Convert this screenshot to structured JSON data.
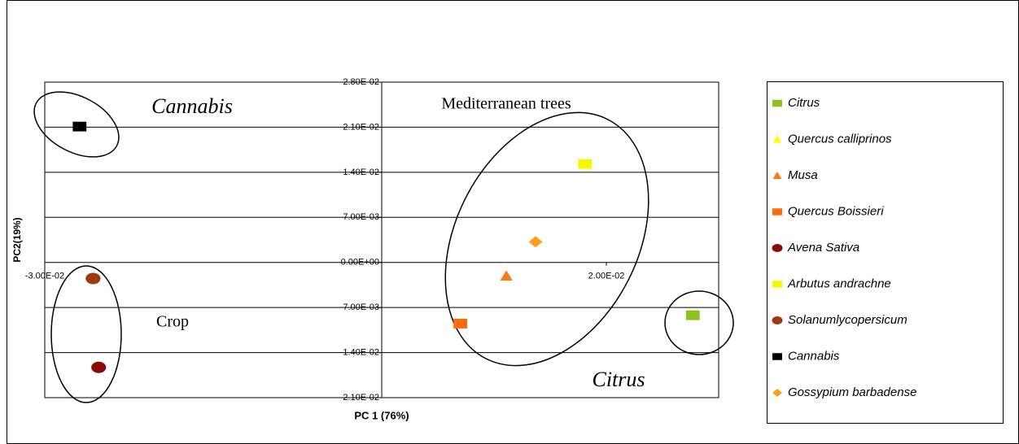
{
  "chart_data": {
    "type": "scatter",
    "x_label": "PC 1 (76%)",
    "y_label": "PC2(19%)",
    "xlim": [
      -0.03,
      0.03
    ],
    "ylim": [
      -0.021,
      0.028
    ],
    "xticks": [
      {
        "value": -0.03,
        "label": "-3.00E-02"
      },
      {
        "value": 0.02,
        "label": "2.00E-02"
      }
    ],
    "yticks": [
      {
        "value": 0.028,
        "label": "2.80E-02"
      },
      {
        "value": 0.021,
        "label": "2.10E-02"
      },
      {
        "value": 0.014,
        "label": "1.40E-02"
      },
      {
        "value": 0.007,
        "label": "7.00E-03"
      },
      {
        "value": 0,
        "label": "0.00E+00"
      },
      {
        "value": -0.007,
        "label": "-7.00E-03"
      },
      {
        "value": -0.014,
        "label": "-1.40E-02"
      },
      {
        "value": -0.021,
        "label": "-2.10E-02"
      }
    ],
    "grid": true,
    "legend": "right",
    "series": [
      {
        "name": "Citrus",
        "color": "#8cc21e",
        "marker": "square",
        "x": [
          0.0277
        ],
        "values": [
          -0.0082
        ]
      },
      {
        "name": "Quercus calliprinos",
        "color": "#ffff00",
        "marker": "triangle",
        "x": [],
        "values": []
      },
      {
        "name": "Musa",
        "color": "#ff7a1a",
        "marker": "triangle",
        "x": [
          0.0111
        ],
        "values": [
          -0.0021
        ]
      },
      {
        "name": "Quercus Boissieri",
        "color": "#ff6a0d",
        "marker": "square",
        "x": [
          0.007
        ],
        "values": [
          -0.0095
        ]
      },
      {
        "name": "Avena Sativa",
        "color": "#8b0a0a",
        "marker": "circle",
        "x": [
          -0.0252
        ],
        "values": [
          -0.0163
        ]
      },
      {
        "name": "Arbutus andrachne",
        "color": "#f7f700",
        "marker": "square",
        "x": [
          0.0181
        ],
        "values": [
          0.0153
        ]
      },
      {
        "name": "Solanumlycopersicum",
        "color": "#9c3a10",
        "marker": "circle",
        "x": [
          -0.0257
        ],
        "values": [
          -0.0025
        ]
      },
      {
        "name": "Cannabis",
        "color": "#000000",
        "marker": "square",
        "x": [
          -0.0269
        ],
        "values": [
          0.0211
        ]
      },
      {
        "name": "Gossypium barbadense",
        "color": "#ff9e1a",
        "marker": "diamond",
        "x": [
          0.0137
        ],
        "values": [
          0.0032
        ]
      }
    ],
    "annotations": [
      "Cannabis",
      "Mediterranean trees",
      "Crop",
      "Citrus"
    ]
  }
}
